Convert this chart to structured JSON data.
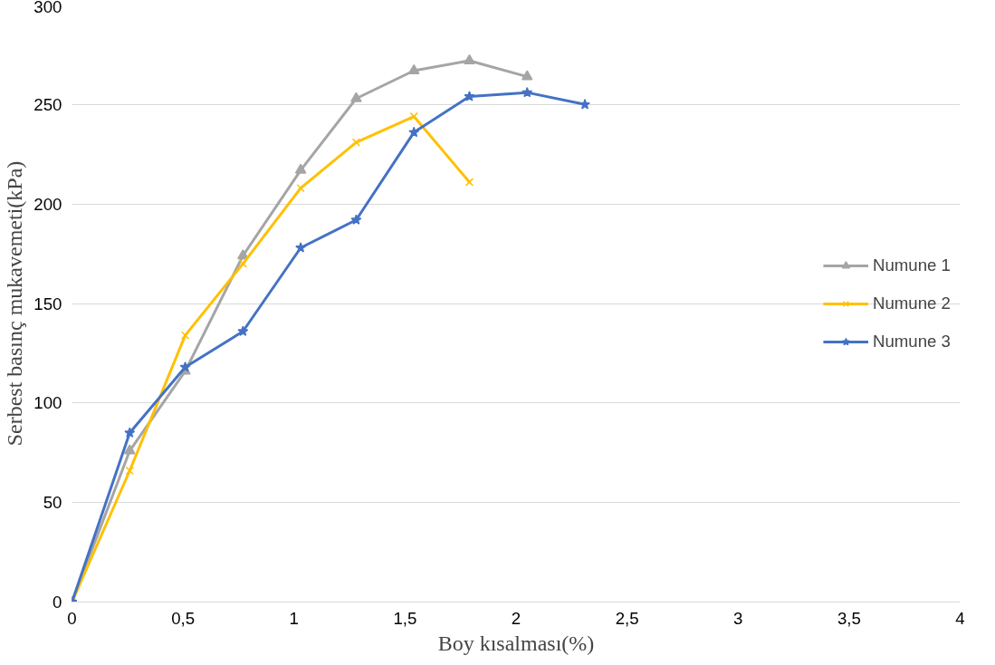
{
  "chart_data": {
    "type": "line",
    "xlabel": "Boy kısalması(%)",
    "ylabel": "Serbest basınç mukavemeti(kPa)",
    "xlim": [
      0,
      4
    ],
    "xticks": [
      0,
      {
        "value": 0.5,
        "label": "0,5"
      },
      1,
      {
        "value": 1.5,
        "label": "1,5"
      },
      2,
      {
        "value": 2.5,
        "label": "2,5"
      },
      3,
      {
        "value": 3.5,
        "label": "3,5"
      },
      4
    ],
    "ylim": [
      0,
      300
    ],
    "yticks": [
      0,
      50,
      100,
      150,
      200,
      250,
      300
    ],
    "grid": "y",
    "legend": "right",
    "series": [
      {
        "name": "Numune 1",
        "color": "#a5a5a5",
        "marker": "triangle",
        "x": [
          0,
          0.26,
          0.51,
          0.77,
          1.03,
          1.28,
          1.54,
          1.79,
          2.05
        ],
        "values": [
          0,
          76,
          116,
          174,
          217,
          253,
          267,
          272,
          264
        ]
      },
      {
        "name": "Numune 2",
        "color": "#ffc000",
        "marker": "cross",
        "x": [
          0,
          0.26,
          0.51,
          0.77,
          1.03,
          1.28,
          1.54,
          1.79
        ],
        "values": [
          0,
          66,
          134,
          170,
          208,
          231,
          244,
          211
        ]
      },
      {
        "name": "Numune 3",
        "color": "#4472c4",
        "marker": "star",
        "x": [
          0,
          0.26,
          0.51,
          0.77,
          1.03,
          1.28,
          1.54,
          1.79,
          2.05,
          2.31
        ],
        "values": [
          0,
          85,
          118,
          136,
          178,
          192,
          236,
          254,
          256,
          250
        ]
      }
    ]
  }
}
